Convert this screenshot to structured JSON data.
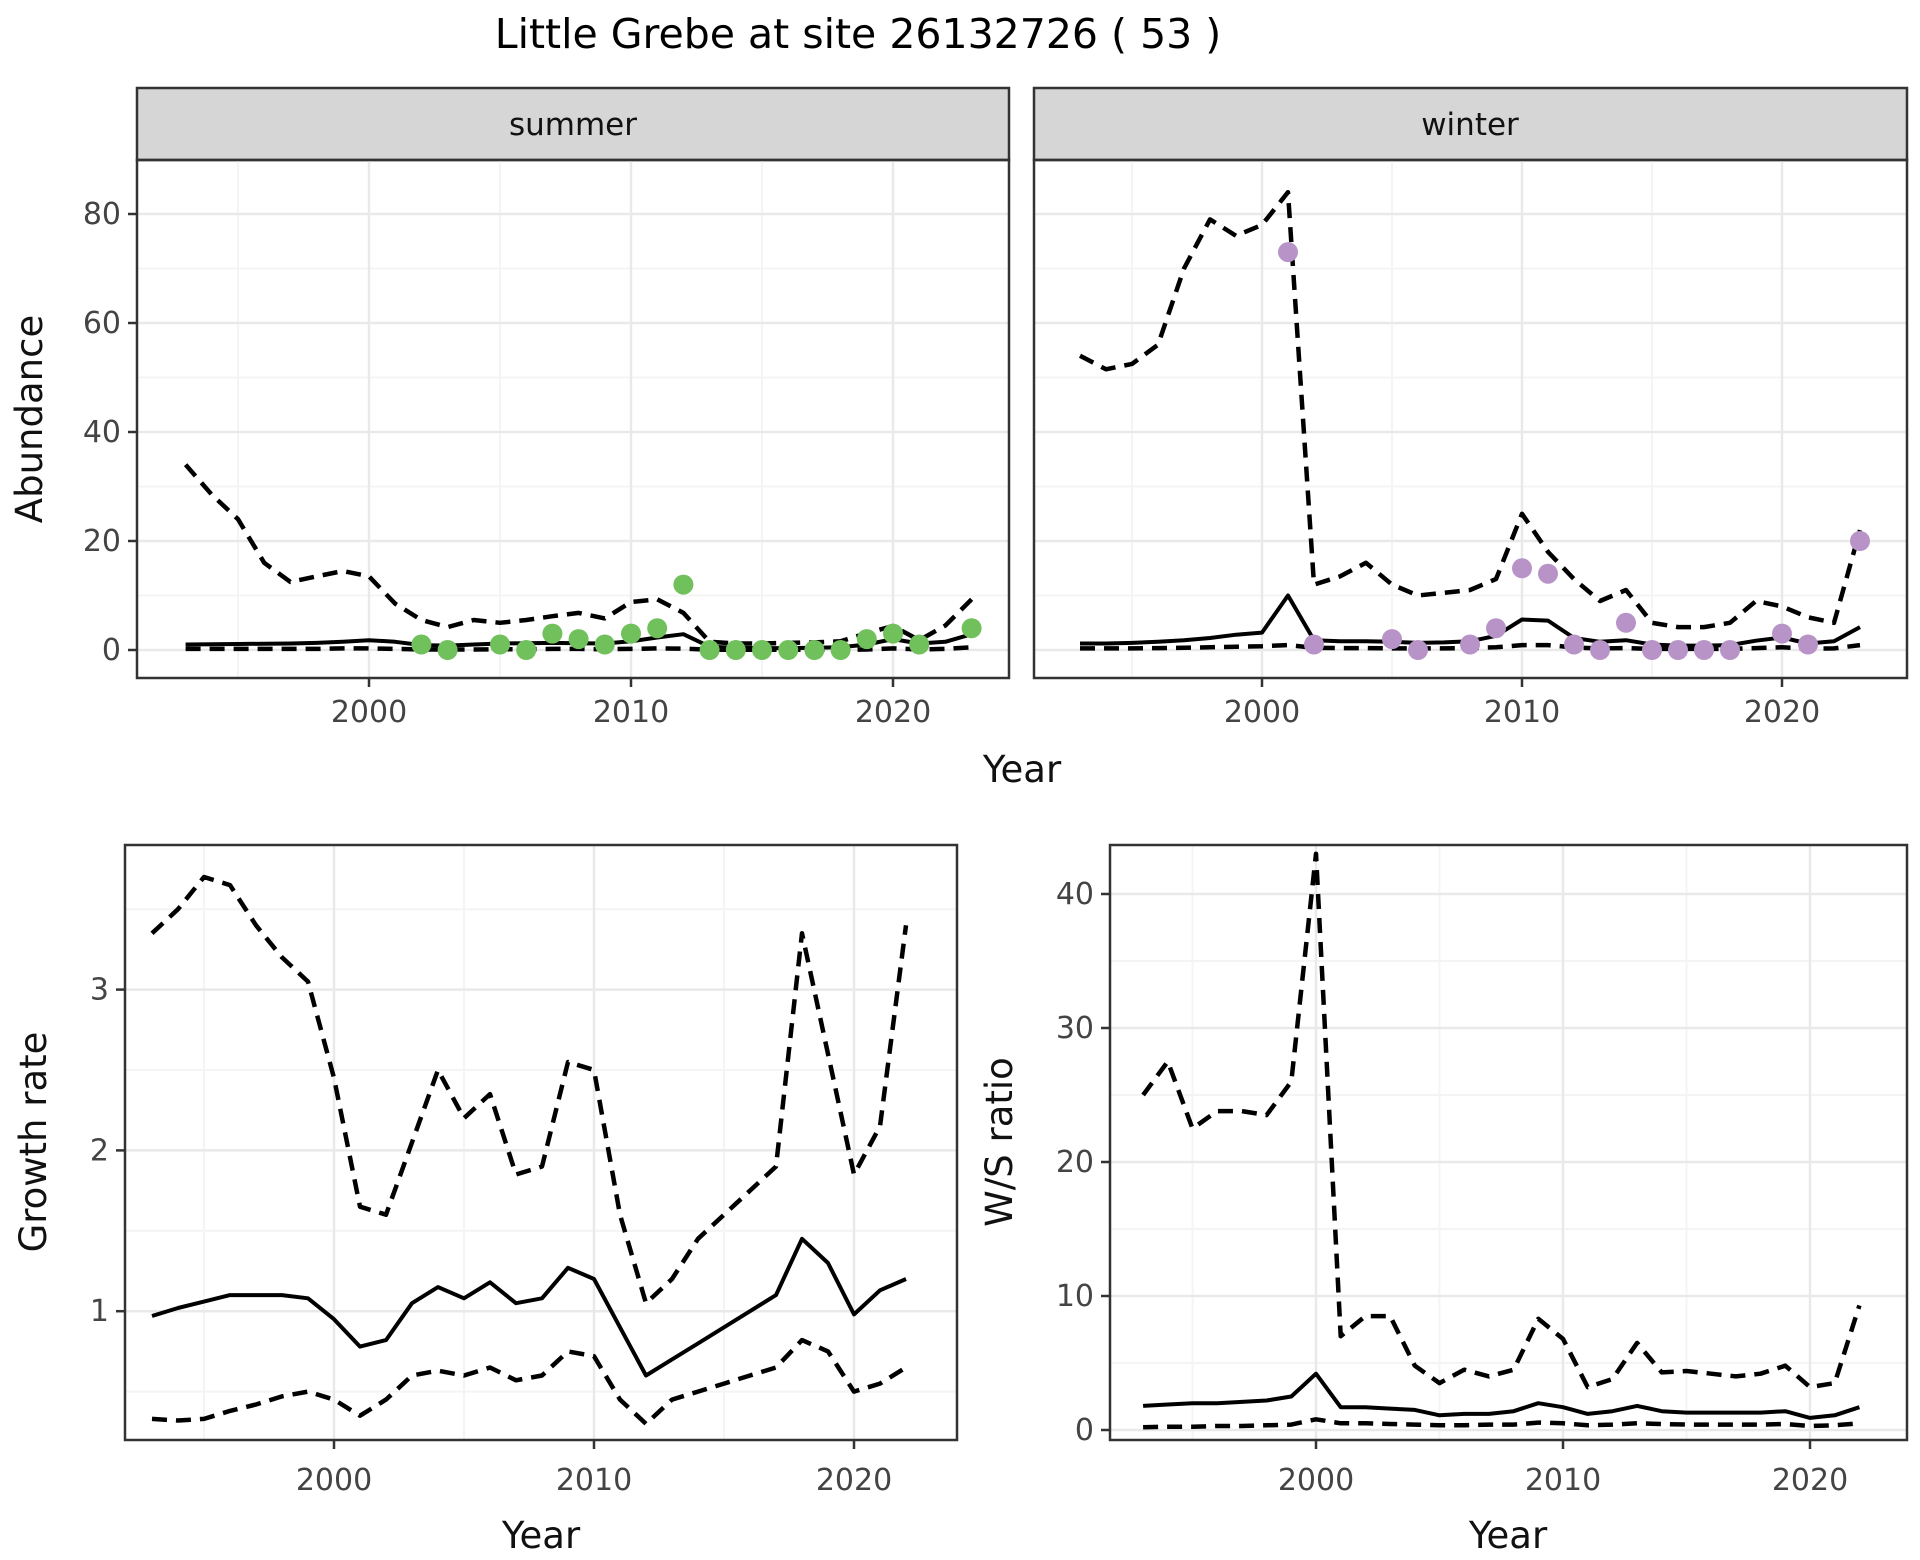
{
  "title": "Little Grebe at site 26132726 ( 53 )",
  "axis_labels": {
    "x": "Year",
    "y_abundance": "Abundance",
    "y_growth": "Growth rate",
    "y_ws": "W/S ratio"
  },
  "facets": {
    "summer": "summer",
    "winter": "winter"
  },
  "colors": {
    "summer_point": "#70c05c",
    "winter_point": "#b893c8",
    "line": "#000000",
    "grid_major": "#e9e9e9",
    "grid_minor": "#f4f4f4",
    "strip_bg": "#d6d6d6",
    "panel_border": "#333333",
    "tick_text": "#444444"
  },
  "chart_data": [
    {
      "id": "abundance",
      "type": "line",
      "xlabel": "Year",
      "ylabel": "Abundance",
      "ylim": [
        -5,
        90
      ],
      "yticks": [
        0,
        20,
        40,
        60,
        80
      ],
      "yticks_minor": [
        10,
        30,
        50,
        70
      ],
      "xticks": [
        2000,
        2010,
        2020
      ],
      "xticks_minor": [
        1995,
        2005,
        2015,
        2025
      ],
      "legend": "none",
      "x": [
        1993,
        1994,
        1995,
        1996,
        1997,
        1998,
        1999,
        2000,
        2001,
        2002,
        2003,
        2004,
        2005,
        2006,
        2007,
        2008,
        2009,
        2010,
        2011,
        2012,
        2013,
        2014,
        2015,
        2016,
        2017,
        2018,
        2019,
        2020,
        2021,
        2022,
        2023
      ],
      "facets": [
        {
          "label": "summer",
          "series": [
            {
              "name": "upper_ci",
              "style": "dashed",
              "values": [
                34,
                28.5,
                24,
                16,
                12.5,
                13.5,
                14.5,
                13.5,
                8.5,
                5.5,
                4.2,
                5.5,
                5,
                5.5,
                6.2,
                6.8,
                5.8,
                8.8,
                9.3,
                6.8,
                1.5,
                1.2,
                1.2,
                1.3,
                1.4,
                1.6,
                3.1,
                4.4,
                1.8,
                4.5,
                9.3
              ]
            },
            {
              "name": "mean",
              "style": "solid",
              "values": [
                1.0,
                1.05,
                1.1,
                1.15,
                1.2,
                1.3,
                1.5,
                1.8,
                1.5,
                0.9,
                0.8,
                1.0,
                1.2,
                1.25,
                1.3,
                1.25,
                1.2,
                1.6,
                2.3,
                2.9,
                0.6,
                0.4,
                0.35,
                0.35,
                0.4,
                0.5,
                1.0,
                2.0,
                1.2,
                1.5,
                2.9
              ]
            },
            {
              "name": "lower_ci",
              "style": "dashed",
              "values": [
                0.2,
                0.2,
                0.2,
                0.2,
                0.2,
                0.2,
                0.3,
                0.3,
                0.2,
                0.1,
                0.1,
                0.1,
                0.15,
                0.15,
                0.2,
                0.2,
                0.15,
                0.2,
                0.3,
                0.25,
                0.05,
                0.05,
                0.05,
                0.05,
                0.05,
                0.05,
                0.1,
                0.3,
                0.1,
                0.2,
                0.5
              ]
            }
          ],
          "points": {
            "color_key": "summer_point",
            "x": [
              2002,
              2003,
              2005,
              2006,
              2007,
              2008,
              2009,
              2010,
              2011,
              2012,
              2013,
              2014,
              2015,
              2016,
              2017,
              2018,
              2019,
              2020,
              2021,
              2023
            ],
            "y": [
              1,
              0,
              1,
              0,
              3,
              2,
              1,
              3,
              4,
              12,
              0,
              0,
              0,
              0,
              0,
              0,
              2,
              3,
              1,
              4
            ]
          }
        },
        {
          "label": "winter",
          "series": [
            {
              "name": "upper_ci",
              "style": "dashed",
              "values": [
                54,
                51.5,
                52.5,
                56,
                70,
                79,
                76,
                78,
                84,
                12,
                13.5,
                16,
                12,
                10,
                10.5,
                11,
                13,
                25,
                18,
                13,
                9,
                11,
                5,
                4.2,
                4.2,
                5,
                9,
                8,
                6,
                5,
                22
              ]
            },
            {
              "name": "mean",
              "style": "solid",
              "values": [
                1.2,
                1.2,
                1.3,
                1.5,
                1.8,
                2.2,
                2.8,
                3.2,
                10,
                1.8,
                1.6,
                1.6,
                1.5,
                1.3,
                1.4,
                1.6,
                2.6,
                5.6,
                5.4,
                2.2,
                1.5,
                1.8,
                1.0,
                0.8,
                0.8,
                0.9,
                1.7,
                2.3,
                1.2,
                1.6,
                4.2
              ]
            },
            {
              "name": "lower_ci",
              "style": "dashed",
              "values": [
                0.3,
                0.3,
                0.3,
                0.35,
                0.4,
                0.5,
                0.6,
                0.7,
                0.9,
                0.4,
                0.35,
                0.35,
                0.3,
                0.3,
                0.3,
                0.35,
                0.5,
                0.9,
                0.9,
                0.45,
                0.3,
                0.35,
                0.2,
                0.2,
                0.2,
                0.2,
                0.35,
                0.5,
                0.25,
                0.3,
                0.9
              ]
            }
          ],
          "points": {
            "color_key": "winter_point",
            "x": [
              2001,
              2002,
              2005,
              2006,
              2008,
              2009,
              2010,
              2011,
              2012,
              2013,
              2014,
              2015,
              2016,
              2017,
              2018,
              2020,
              2021,
              2023
            ],
            "y": [
              73,
              1,
              2,
              0,
              1,
              4,
              15,
              14,
              1,
              0,
              5,
              0,
              0,
              0,
              0,
              3,
              1,
              20
            ]
          }
        }
      ]
    },
    {
      "id": "growth_rate",
      "type": "line",
      "xlabel": "Year",
      "ylabel": "Growth rate",
      "ylim": [
        0.2,
        3.9
      ],
      "yticks": [
        1,
        2,
        3
      ],
      "yticks_minor": [
        0.5,
        1.5,
        2.5,
        3.5
      ],
      "xticks": [
        2000,
        2010,
        2020
      ],
      "xticks_minor": [
        1995,
        2005,
        2015,
        2025
      ],
      "legend": "none",
      "x": [
        1993,
        1994,
        1995,
        1996,
        1997,
        1998,
        1999,
        2000,
        2001,
        2002,
        2003,
        2004,
        2005,
        2006,
        2007,
        2008,
        2009,
        2010,
        2011,
        2012,
        2013,
        2014,
        2015,
        2016,
        2017,
        2018,
        2019,
        2020,
        2021,
        2022
      ],
      "facets": [
        {
          "label": "",
          "series": [
            {
              "name": "upper_ci",
              "style": "dashed",
              "values": [
                3.35,
                3.5,
                3.7,
                3.65,
                3.4,
                3.2,
                3.05,
                2.45,
                1.65,
                1.6,
                2.05,
                2.5,
                2.2,
                2.35,
                1.85,
                1.9,
                2.55,
                2.5,
                1.6,
                1.05,
                1.2,
                1.45,
                1.6,
                1.75,
                1.9,
                3.35,
                2.6,
                1.85,
                2.15,
                3.4
              ]
            },
            {
              "name": "mean",
              "style": "solid",
              "values": [
                0.97,
                1.02,
                1.06,
                1.1,
                1.1,
                1.1,
                1.08,
                0.95,
                0.78,
                0.82,
                1.05,
                1.15,
                1.08,
                1.18,
                1.05,
                1.08,
                1.27,
                1.2,
                0.9,
                0.6,
                0.7,
                0.8,
                0.9,
                1.0,
                1.1,
                1.45,
                1.3,
                0.98,
                1.13,
                1.2
              ]
            },
            {
              "name": "lower_ci",
              "style": "dashed",
              "values": [
                0.33,
                0.32,
                0.33,
                0.38,
                0.42,
                0.47,
                0.5,
                0.45,
                0.35,
                0.45,
                0.6,
                0.63,
                0.6,
                0.65,
                0.57,
                0.6,
                0.75,
                0.72,
                0.45,
                0.3,
                0.45,
                0.5,
                0.55,
                0.6,
                0.65,
                0.82,
                0.75,
                0.5,
                0.55,
                0.65
              ]
            }
          ]
        }
      ]
    },
    {
      "id": "ws_ratio",
      "type": "line",
      "xlabel": "Year",
      "ylabel": "W/S ratio",
      "ylim": [
        -0.8,
        43.7
      ],
      "yticks": [
        0,
        10,
        20,
        30,
        40
      ],
      "yticks_minor": [
        5,
        15,
        25,
        35
      ],
      "xticks": [
        2000,
        2010,
        2020
      ],
      "xticks_minor": [
        1995,
        2005,
        2015,
        2025
      ],
      "legend": "none",
      "x": [
        1993,
        1994,
        1995,
        1996,
        1997,
        1998,
        1999,
        2000,
        2001,
        2002,
        2003,
        2004,
        2005,
        2006,
        2007,
        2008,
        2009,
        2010,
        2011,
        2012,
        2013,
        2014,
        2015,
        2016,
        2017,
        2018,
        2019,
        2020,
        2021,
        2022
      ],
      "facets": [
        {
          "label": "",
          "series": [
            {
              "name": "upper_ci",
              "style": "dashed",
              "values": [
                25,
                27.5,
                22.5,
                23.8,
                23.8,
                23.5,
                26,
                43,
                7,
                8.5,
                8.5,
                4.8,
                3.5,
                4.5,
                4,
                4.5,
                8.3,
                6.8,
                3.2,
                3.8,
                6.5,
                4.3,
                4.4,
                4.2,
                4,
                4.2,
                4.8,
                3.2,
                3.5,
                9.3
              ]
            },
            {
              "name": "mean",
              "style": "solid",
              "values": [
                1.8,
                1.9,
                2.0,
                2.0,
                2.1,
                2.2,
                2.5,
                4.2,
                1.7,
                1.7,
                1.6,
                1.5,
                1.1,
                1.2,
                1.2,
                1.4,
                2.0,
                1.7,
                1.2,
                1.4,
                1.8,
                1.4,
                1.3,
                1.3,
                1.3,
                1.3,
                1.4,
                0.9,
                1.1,
                1.7
              ]
            },
            {
              "name": "lower_ci",
              "style": "dashed",
              "values": [
                0.2,
                0.25,
                0.25,
                0.3,
                0.3,
                0.35,
                0.4,
                0.8,
                0.5,
                0.5,
                0.45,
                0.4,
                0.35,
                0.35,
                0.4,
                0.4,
                0.55,
                0.5,
                0.35,
                0.4,
                0.5,
                0.45,
                0.4,
                0.4,
                0.4,
                0.4,
                0.45,
                0.3,
                0.35,
                0.5
              ]
            }
          ]
        }
      ]
    }
  ]
}
